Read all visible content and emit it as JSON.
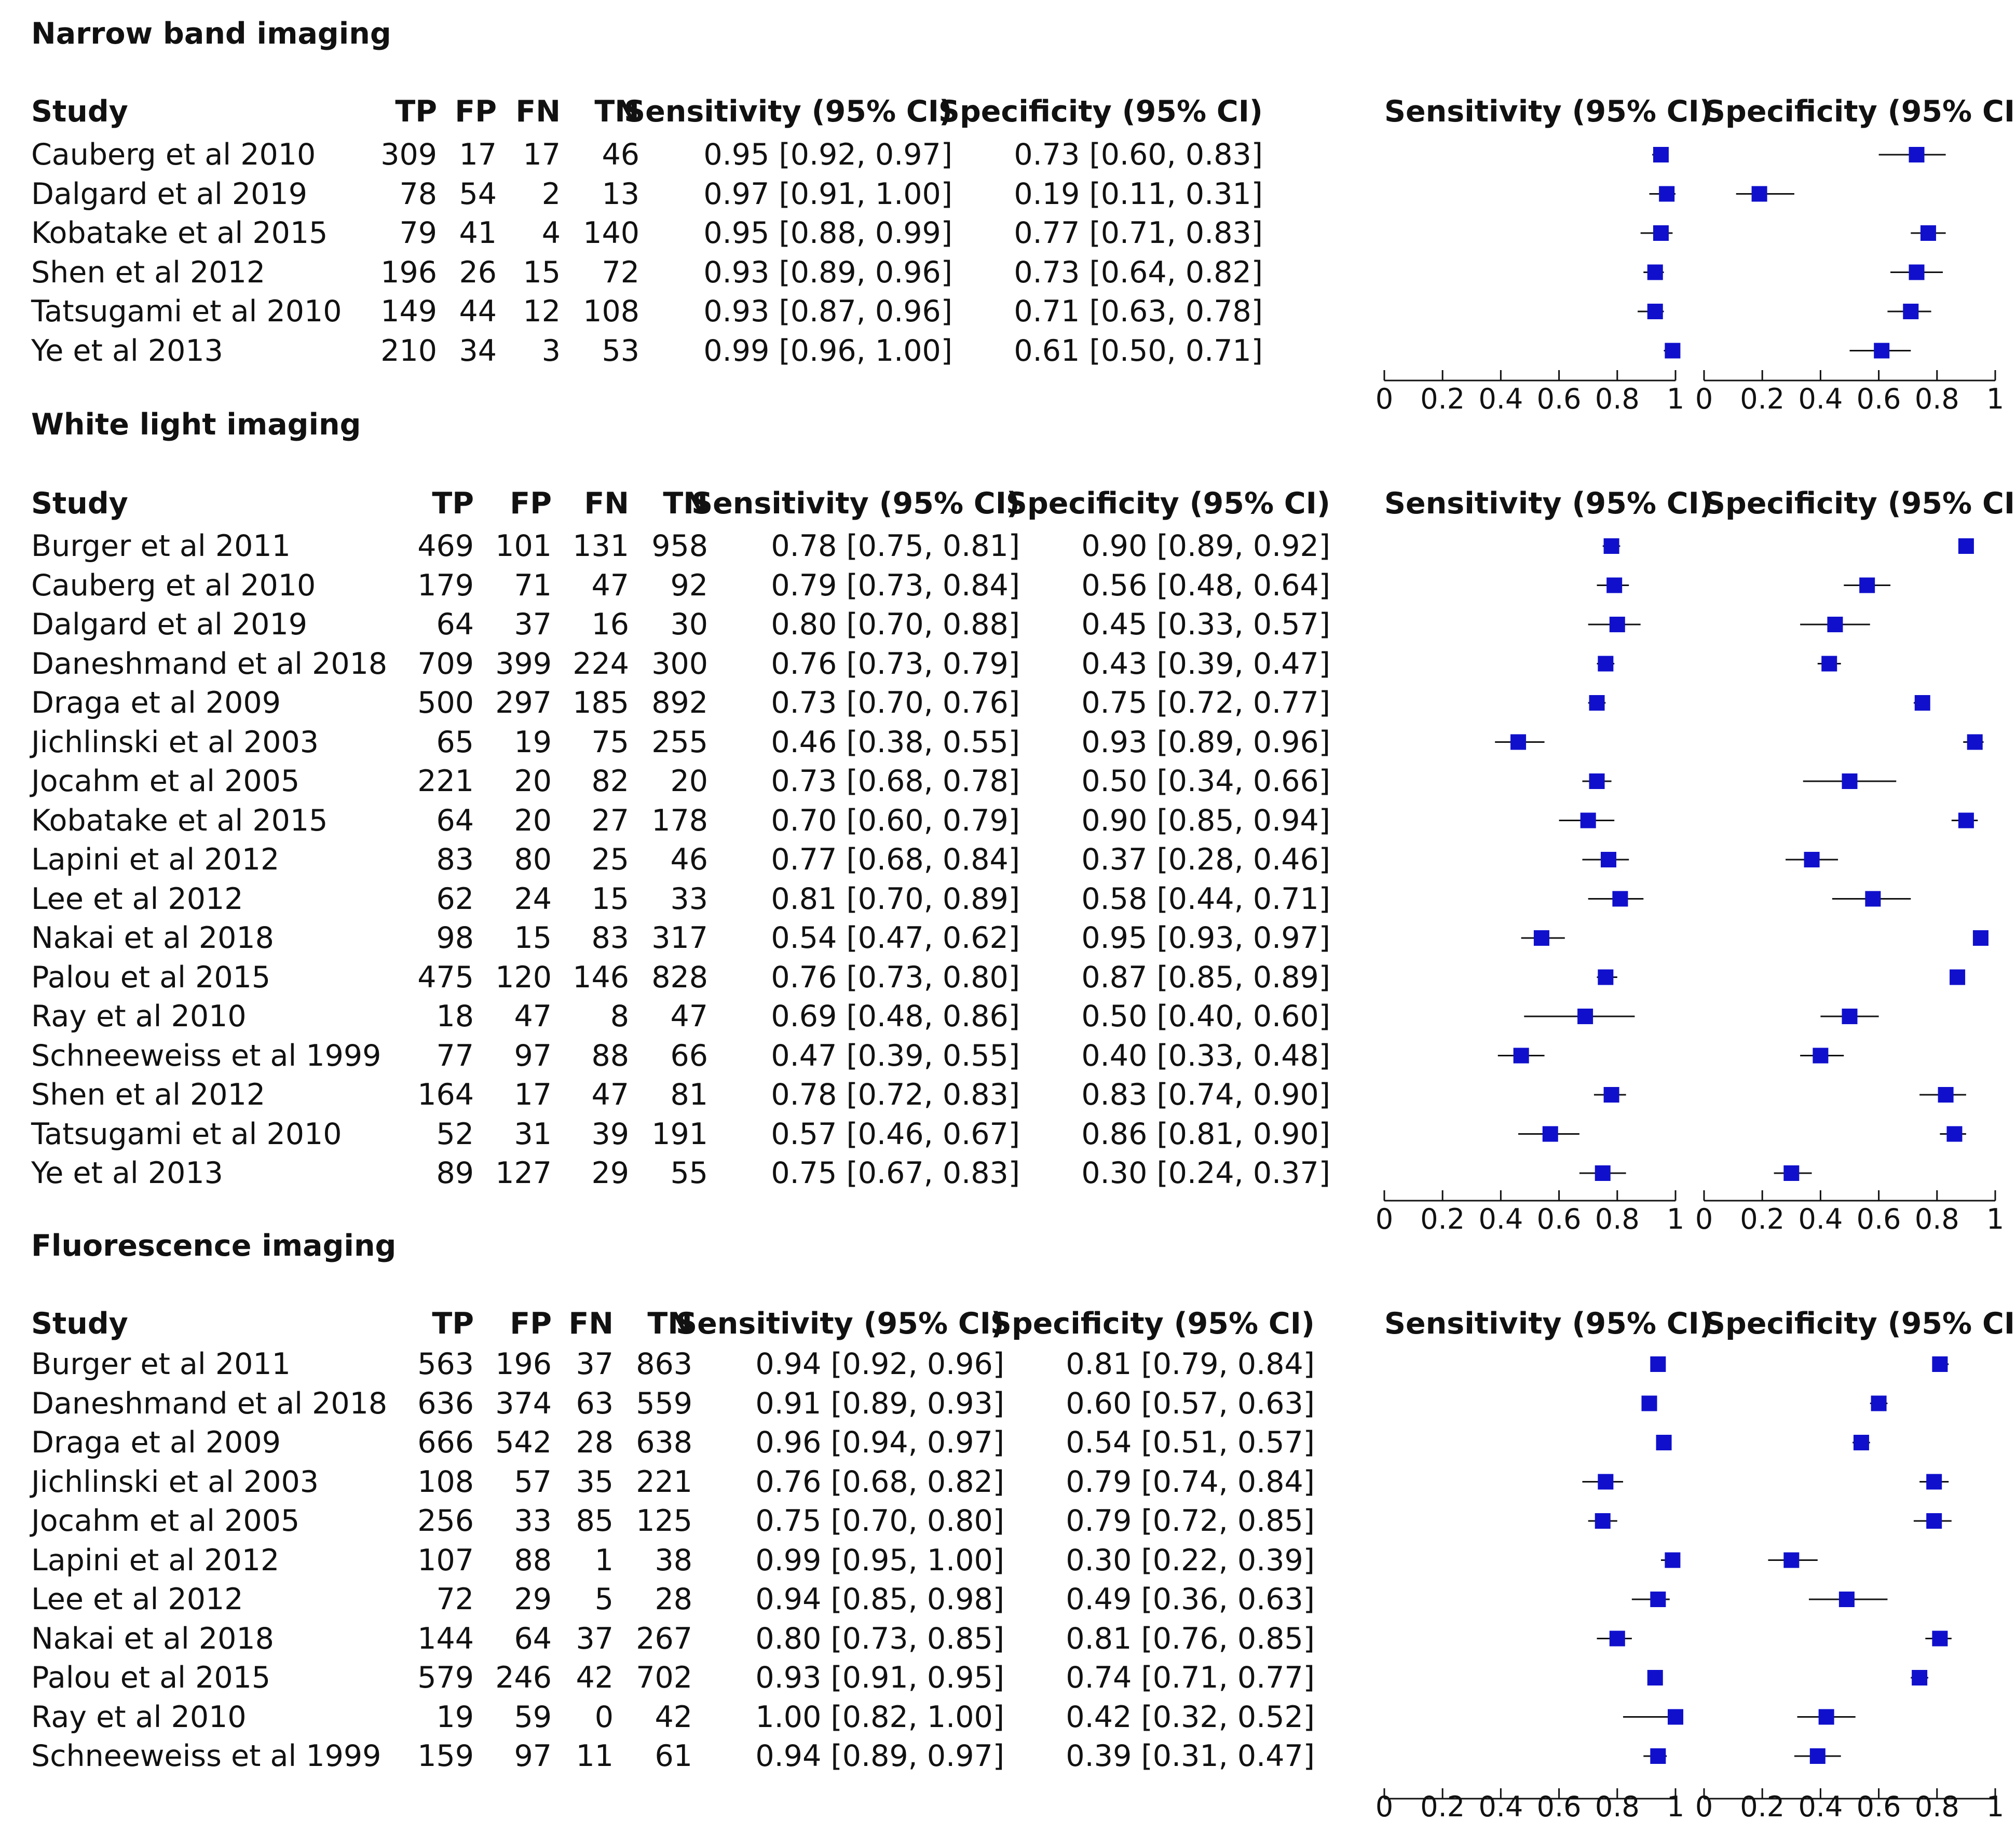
{
  "chart_data": {
    "type": "forest",
    "headers": {
      "study": "Study",
      "tp": "TP",
      "fp": "FP",
      "fn": "FN",
      "tn": "TN",
      "sensitivity": "Sensitivity (95% CI)",
      "specificity": "Specificity (95% CI)"
    },
    "axis": {
      "range": [
        0,
        1
      ],
      "ticks": [
        "0",
        "0.2",
        "0.4",
        "0.6",
        "0.8",
        "1"
      ]
    },
    "colors": {
      "marker": "#1010cc",
      "line": "#111111"
    },
    "panels": [
      {
        "title": "Narrow band imaging",
        "rows": [
          {
            "study": "Cauberg et al 2010",
            "tp": "309",
            "fp": "17",
            "fn": "17",
            "tn": "46",
            "sens": "0.95 [0.92, 0.97]",
            "spec": "0.73 [0.60, 0.83]",
            "sens_est": 0.95,
            "sens_lo": 0.92,
            "sens_hi": 0.97,
            "spec_est": 0.73,
            "spec_lo": 0.6,
            "spec_hi": 0.83
          },
          {
            "study": "Dalgard et al 2019",
            "tp": "78",
            "fp": "54",
            "fn": "2",
            "tn": "13",
            "sens": "0.97 [0.91, 1.00]",
            "spec": "0.19 [0.11, 0.31]",
            "sens_est": 0.97,
            "sens_lo": 0.91,
            "sens_hi": 1.0,
            "spec_est": 0.19,
            "spec_lo": 0.11,
            "spec_hi": 0.31
          },
          {
            "study": "Kobatake et al 2015",
            "tp": "79",
            "fp": "41",
            "fn": "4",
            "tn": "140",
            "sens": "0.95 [0.88, 0.99]",
            "spec": "0.77 [0.71, 0.83]",
            "sens_est": 0.95,
            "sens_lo": 0.88,
            "sens_hi": 0.99,
            "spec_est": 0.77,
            "spec_lo": 0.71,
            "spec_hi": 0.83
          },
          {
            "study": "Shen et al 2012",
            "tp": "196",
            "fp": "26",
            "fn": "15",
            "tn": "72",
            "sens": "0.93 [0.89, 0.96]",
            "spec": "0.73 [0.64, 0.82]",
            "sens_est": 0.93,
            "sens_lo": 0.89,
            "sens_hi": 0.96,
            "spec_est": 0.73,
            "spec_lo": 0.64,
            "spec_hi": 0.82
          },
          {
            "study": "Tatsugami et al 2010",
            "tp": "149",
            "fp": "44",
            "fn": "12",
            "tn": "108",
            "sens": "0.93 [0.87, 0.96]",
            "spec": "0.71 [0.63, 0.78]",
            "sens_est": 0.93,
            "sens_lo": 0.87,
            "sens_hi": 0.96,
            "spec_est": 0.71,
            "spec_lo": 0.63,
            "spec_hi": 0.78
          },
          {
            "study": "Ye et al 2013",
            "tp": "210",
            "fp": "34",
            "fn": "3",
            "tn": "53",
            "sens": "0.99 [0.96, 1.00]",
            "spec": "0.61 [0.50, 0.71]",
            "sens_est": 0.99,
            "sens_lo": 0.96,
            "sens_hi": 1.0,
            "spec_est": 0.61,
            "spec_lo": 0.5,
            "spec_hi": 0.71
          }
        ]
      },
      {
        "title": "White light imaging",
        "rows": [
          {
            "study": "Burger et al 2011",
            "tp": "469",
            "fp": "101",
            "fn": "131",
            "tn": "958",
            "sens": "0.78 [0.75, 0.81]",
            "spec": "0.90 [0.89, 0.92]",
            "sens_est": 0.78,
            "sens_lo": 0.75,
            "sens_hi": 0.81,
            "spec_est": 0.9,
            "spec_lo": 0.89,
            "spec_hi": 0.92
          },
          {
            "study": "Cauberg et al 2010",
            "tp": "179",
            "fp": "71",
            "fn": "47",
            "tn": "92",
            "sens": "0.79 [0.73, 0.84]",
            "spec": "0.56 [0.48, 0.64]",
            "sens_est": 0.79,
            "sens_lo": 0.73,
            "sens_hi": 0.84,
            "spec_est": 0.56,
            "spec_lo": 0.48,
            "spec_hi": 0.64
          },
          {
            "study": "Dalgard et al 2019",
            "tp": "64",
            "fp": "37",
            "fn": "16",
            "tn": "30",
            "sens": "0.80 [0.70, 0.88]",
            "spec": "0.45 [0.33, 0.57]",
            "sens_est": 0.8,
            "sens_lo": 0.7,
            "sens_hi": 0.88,
            "spec_est": 0.45,
            "spec_lo": 0.33,
            "spec_hi": 0.57
          },
          {
            "study": "Daneshmand et al 2018",
            "tp": "709",
            "fp": "399",
            "fn": "224",
            "tn": "300",
            "sens": "0.76 [0.73, 0.79]",
            "spec": "0.43 [0.39, 0.47]",
            "sens_est": 0.76,
            "sens_lo": 0.73,
            "sens_hi": 0.79,
            "spec_est": 0.43,
            "spec_lo": 0.39,
            "spec_hi": 0.47
          },
          {
            "study": "Draga et al 2009",
            "tp": "500",
            "fp": "297",
            "fn": "185",
            "tn": "892",
            "sens": "0.73 [0.70, 0.76]",
            "spec": "0.75 [0.72, 0.77]",
            "sens_est": 0.73,
            "sens_lo": 0.7,
            "sens_hi": 0.76,
            "spec_est": 0.75,
            "spec_lo": 0.72,
            "spec_hi": 0.77
          },
          {
            "study": "Jichlinski et al 2003",
            "tp": "65",
            "fp": "19",
            "fn": "75",
            "tn": "255",
            "sens": "0.46 [0.38, 0.55]",
            "spec": "0.93 [0.89, 0.96]",
            "sens_est": 0.46,
            "sens_lo": 0.38,
            "sens_hi": 0.55,
            "spec_est": 0.93,
            "spec_lo": 0.89,
            "spec_hi": 0.96
          },
          {
            "study": "Jocahm et al 2005",
            "tp": "221",
            "fp": "20",
            "fn": "82",
            "tn": "20",
            "sens": "0.73 [0.68, 0.78]",
            "spec": "0.50 [0.34, 0.66]",
            "sens_est": 0.73,
            "sens_lo": 0.68,
            "sens_hi": 0.78,
            "spec_est": 0.5,
            "spec_lo": 0.34,
            "spec_hi": 0.66
          },
          {
            "study": "Kobatake et al 2015",
            "tp": "64",
            "fp": "20",
            "fn": "27",
            "tn": "178",
            "sens": "0.70 [0.60, 0.79]",
            "spec": "0.90 [0.85, 0.94]",
            "sens_est": 0.7,
            "sens_lo": 0.6,
            "sens_hi": 0.79,
            "spec_est": 0.9,
            "spec_lo": 0.85,
            "spec_hi": 0.94
          },
          {
            "study": "Lapini et al 2012",
            "tp": "83",
            "fp": "80",
            "fn": "25",
            "tn": "46",
            "sens": "0.77 [0.68, 0.84]",
            "spec": "0.37 [0.28, 0.46]",
            "sens_est": 0.77,
            "sens_lo": 0.68,
            "sens_hi": 0.84,
            "spec_est": 0.37,
            "spec_lo": 0.28,
            "spec_hi": 0.46
          },
          {
            "study": "Lee et al 2012",
            "tp": "62",
            "fp": "24",
            "fn": "15",
            "tn": "33",
            "sens": "0.81 [0.70, 0.89]",
            "spec": "0.58 [0.44, 0.71]",
            "sens_est": 0.81,
            "sens_lo": 0.7,
            "sens_hi": 0.89,
            "spec_est": 0.58,
            "spec_lo": 0.44,
            "spec_hi": 0.71
          },
          {
            "study": "Nakai et al 2018",
            "tp": "98",
            "fp": "15",
            "fn": "83",
            "tn": "317",
            "sens": "0.54 [0.47, 0.62]",
            "spec": "0.95 [0.93, 0.97]",
            "sens_est": 0.54,
            "sens_lo": 0.47,
            "sens_hi": 0.62,
            "spec_est": 0.95,
            "spec_lo": 0.93,
            "spec_hi": 0.97
          },
          {
            "study": "Palou et al 2015",
            "tp": "475",
            "fp": "120",
            "fn": "146",
            "tn": "828",
            "sens": "0.76 [0.73, 0.80]",
            "spec": "0.87 [0.85, 0.89]",
            "sens_est": 0.76,
            "sens_lo": 0.73,
            "sens_hi": 0.8,
            "spec_est": 0.87,
            "spec_lo": 0.85,
            "spec_hi": 0.89
          },
          {
            "study": "Ray et al 2010",
            "tp": "18",
            "fp": "47",
            "fn": "8",
            "tn": "47",
            "sens": "0.69 [0.48, 0.86]",
            "spec": "0.50 [0.40, 0.60]",
            "sens_est": 0.69,
            "sens_lo": 0.48,
            "sens_hi": 0.86,
            "spec_est": 0.5,
            "spec_lo": 0.4,
            "spec_hi": 0.6
          },
          {
            "study": "Schneeweiss et al 1999",
            "tp": "77",
            "fp": "97",
            "fn": "88",
            "tn": "66",
            "sens": "0.47 [0.39, 0.55]",
            "spec": "0.40 [0.33, 0.48]",
            "sens_est": 0.47,
            "sens_lo": 0.39,
            "sens_hi": 0.55,
            "spec_est": 0.4,
            "spec_lo": 0.33,
            "spec_hi": 0.48
          },
          {
            "study": "Shen et al 2012",
            "tp": "164",
            "fp": "17",
            "fn": "47",
            "tn": "81",
            "sens": "0.78 [0.72, 0.83]",
            "spec": "0.83 [0.74, 0.90]",
            "sens_est": 0.78,
            "sens_lo": 0.72,
            "sens_hi": 0.83,
            "spec_est": 0.83,
            "spec_lo": 0.74,
            "spec_hi": 0.9
          },
          {
            "study": "Tatsugami et al 2010",
            "tp": "52",
            "fp": "31",
            "fn": "39",
            "tn": "191",
            "sens": "0.57 [0.46, 0.67]",
            "spec": "0.86 [0.81, 0.90]",
            "sens_est": 0.57,
            "sens_lo": 0.46,
            "sens_hi": 0.67,
            "spec_est": 0.86,
            "spec_lo": 0.81,
            "spec_hi": 0.9
          },
          {
            "study": "Ye et al 2013",
            "tp": "89",
            "fp": "127",
            "fn": "29",
            "tn": "55",
            "sens": "0.75 [0.67, 0.83]",
            "spec": "0.30 [0.24, 0.37]",
            "sens_est": 0.75,
            "sens_lo": 0.67,
            "sens_hi": 0.83,
            "spec_est": 0.3,
            "spec_lo": 0.24,
            "spec_hi": 0.37
          }
        ]
      },
      {
        "title": "Fluorescence imaging",
        "rows": [
          {
            "study": "Burger et al 2011",
            "tp": "563",
            "fp": "196",
            "fn": "37",
            "tn": "863",
            "sens": "0.94 [0.92, 0.96]",
            "spec": "0.81 [0.79, 0.84]",
            "sens_est": 0.94,
            "sens_lo": 0.92,
            "sens_hi": 0.96,
            "spec_est": 0.81,
            "spec_lo": 0.79,
            "spec_hi": 0.84
          },
          {
            "study": "Daneshmand et al 2018",
            "tp": "636",
            "fp": "374",
            "fn": "63",
            "tn": "559",
            "sens": "0.91 [0.89, 0.93]",
            "spec": "0.60 [0.57, 0.63]",
            "sens_est": 0.91,
            "sens_lo": 0.89,
            "sens_hi": 0.93,
            "spec_est": 0.6,
            "spec_lo": 0.57,
            "spec_hi": 0.63
          },
          {
            "study": "Draga et al 2009",
            "tp": "666",
            "fp": "542",
            "fn": "28",
            "tn": "638",
            "sens": "0.96 [0.94, 0.97]",
            "spec": "0.54 [0.51, 0.57]",
            "sens_est": 0.96,
            "sens_lo": 0.94,
            "sens_hi": 0.97,
            "spec_est": 0.54,
            "spec_lo": 0.51,
            "spec_hi": 0.57
          },
          {
            "study": "Jichlinski et al 2003",
            "tp": "108",
            "fp": "57",
            "fn": "35",
            "tn": "221",
            "sens": "0.76 [0.68, 0.82]",
            "spec": "0.79 [0.74, 0.84]",
            "sens_est": 0.76,
            "sens_lo": 0.68,
            "sens_hi": 0.82,
            "spec_est": 0.79,
            "spec_lo": 0.74,
            "spec_hi": 0.84
          },
          {
            "study": "Jocahm et al 2005",
            "tp": "256",
            "fp": "33",
            "fn": "85",
            "tn": "125",
            "sens": "0.75 [0.70, 0.80]",
            "spec": "0.79 [0.72, 0.85]",
            "sens_est": 0.75,
            "sens_lo": 0.7,
            "sens_hi": 0.8,
            "spec_est": 0.79,
            "spec_lo": 0.72,
            "spec_hi": 0.85
          },
          {
            "study": "Lapini et al 2012",
            "tp": "107",
            "fp": "88",
            "fn": "1",
            "tn": "38",
            "sens": "0.99 [0.95, 1.00]",
            "spec": "0.30 [0.22, 0.39]",
            "sens_est": 0.99,
            "sens_lo": 0.95,
            "sens_hi": 1.0,
            "spec_est": 0.3,
            "spec_lo": 0.22,
            "spec_hi": 0.39
          },
          {
            "study": "Lee et al 2012",
            "tp": "72",
            "fp": "29",
            "fn": "5",
            "tn": "28",
            "sens": "0.94 [0.85, 0.98]",
            "spec": "0.49 [0.36, 0.63]",
            "sens_est": 0.94,
            "sens_lo": 0.85,
            "sens_hi": 0.98,
            "spec_est": 0.49,
            "spec_lo": 0.36,
            "spec_hi": 0.63
          },
          {
            "study": "Nakai et al 2018",
            "tp": "144",
            "fp": "64",
            "fn": "37",
            "tn": "267",
            "sens": "0.80 [0.73, 0.85]",
            "spec": "0.81 [0.76, 0.85]",
            "sens_est": 0.8,
            "sens_lo": 0.73,
            "sens_hi": 0.85,
            "spec_est": 0.81,
            "spec_lo": 0.76,
            "spec_hi": 0.85
          },
          {
            "study": "Palou et al 2015",
            "tp": "579",
            "fp": "246",
            "fn": "42",
            "tn": "702",
            "sens": "0.93 [0.91, 0.95]",
            "spec": "0.74 [0.71, 0.77]",
            "sens_est": 0.93,
            "sens_lo": 0.91,
            "sens_hi": 0.95,
            "spec_est": 0.74,
            "spec_lo": 0.71,
            "spec_hi": 0.77
          },
          {
            "study": "Ray et al 2010",
            "tp": "19",
            "fp": "59",
            "fn": "0",
            "tn": "42",
            "sens": "1.00 [0.82, 1.00]",
            "spec": "0.42 [0.32, 0.52]",
            "sens_est": 1.0,
            "sens_lo": 0.82,
            "sens_hi": 1.0,
            "spec_est": 0.42,
            "spec_lo": 0.32,
            "spec_hi": 0.52
          },
          {
            "study": "Schneeweiss et al 1999",
            "tp": "159",
            "fp": "97",
            "fn": "11",
            "tn": "61",
            "sens": "0.94 [0.89, 0.97]",
            "spec": "0.39 [0.31, 0.47]",
            "sens_est": 0.94,
            "sens_lo": 0.89,
            "sens_hi": 0.97,
            "spec_est": 0.39,
            "spec_lo": 0.31,
            "spec_hi": 0.47
          }
        ]
      }
    ]
  }
}
